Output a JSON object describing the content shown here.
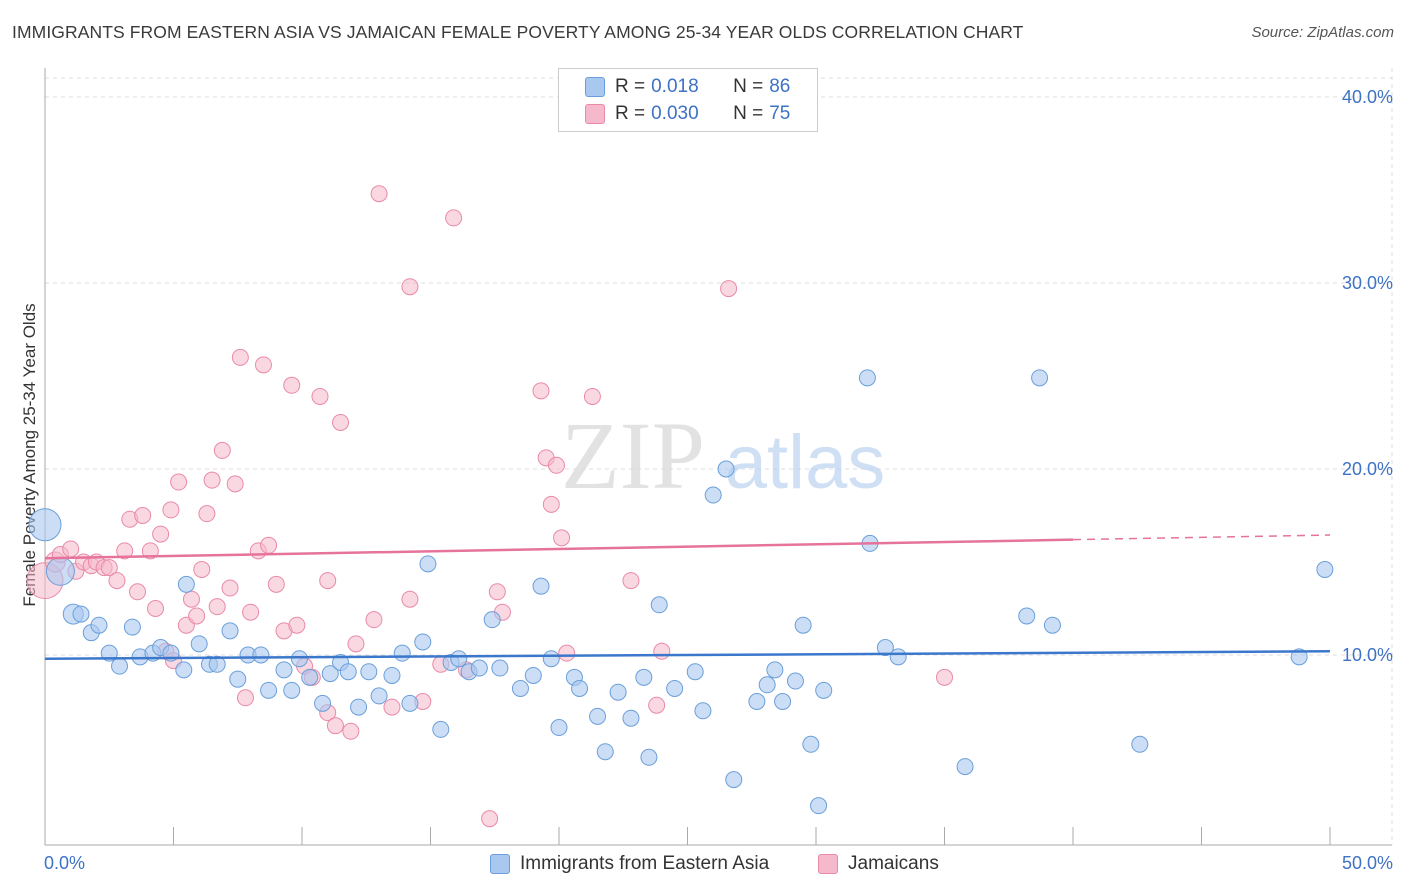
{
  "title": "IMMIGRANTS FROM EASTERN ASIA VS JAMAICAN FEMALE POVERTY AMONG 25-34 YEAR OLDS CORRELATION CHART",
  "source": "Source: ZipAtlas.com",
  "watermark": {
    "zip": "ZIP",
    "atlas": "atlas"
  },
  "colors": {
    "blue_fill": "#a9c8f0",
    "blue_stroke": "#6b9fd9",
    "blue_line": "#3b78cc",
    "pink_fill": "#f6b8cb",
    "pink_stroke": "#e98aa8",
    "pink_line": "#e5739a",
    "tick_label": "#3d72c5",
    "grid": "#dddddd"
  },
  "legend": {
    "rows": [
      {
        "r_label": "R =",
        "r_value": "0.018",
        "n_label": "N =",
        "n_value": "86"
      },
      {
        "r_label": "R =",
        "r_value": "0.030",
        "n_label": "N =",
        "n_value": "75"
      }
    ]
  },
  "bottom_legend": [
    "Immigrants from Eastern Asia",
    "Jamaicans"
  ],
  "chart_data": {
    "type": "scatter",
    "title": "IMMIGRANTS FROM EASTERN ASIA VS JAMAICAN FEMALE POVERTY AMONG 25-34 YEAR OLDS CORRELATION CHART",
    "xlabel": "",
    "ylabel": "Female Poverty Among 25-34 Year Olds",
    "xlim": [
      0,
      50
    ],
    "ylim": [
      0,
      40
    ],
    "x_tick_labels": [
      "0.0%",
      "50.0%"
    ],
    "y_tick_labels": [
      "10.0%",
      "20.0%",
      "30.0%",
      "40.0%"
    ],
    "y_ticks": [
      10,
      20,
      30,
      40
    ],
    "grid": true,
    "legend_position": "top-center",
    "series": [
      {
        "name": "Immigrants from Eastern Asia",
        "r": 0.018,
        "n": 86,
        "trend": {
          "x": [
            0,
            50
          ],
          "y": [
            9.8,
            10.2
          ]
        },
        "points": [
          [
            0.0,
            17.0,
            16
          ],
          [
            0.6,
            14.5,
            14
          ],
          [
            1.1,
            12.2,
            10
          ],
          [
            1.4,
            12.2,
            8
          ],
          [
            1.8,
            11.2,
            8
          ],
          [
            2.1,
            11.6,
            8
          ],
          [
            2.5,
            10.1,
            8
          ],
          [
            2.9,
            9.4,
            8
          ],
          [
            3.4,
            11.5,
            8
          ],
          [
            3.7,
            9.9,
            8
          ],
          [
            4.2,
            10.1,
            8
          ],
          [
            4.5,
            10.4,
            8
          ],
          [
            4.9,
            10.1,
            8
          ],
          [
            5.4,
            9.2,
            8
          ],
          [
            5.5,
            13.8,
            8
          ],
          [
            6.0,
            10.6,
            8
          ],
          [
            6.4,
            9.5,
            8
          ],
          [
            6.7,
            9.5,
            8
          ],
          [
            7.2,
            11.3,
            8
          ],
          [
            7.5,
            8.7,
            8
          ],
          [
            7.9,
            10.0,
            8
          ],
          [
            8.4,
            10.0,
            8
          ],
          [
            8.7,
            8.1,
            8
          ],
          [
            9.3,
            9.2,
            8
          ],
          [
            9.6,
            8.1,
            8
          ],
          [
            9.9,
            9.8,
            8
          ],
          [
            10.3,
            8.8,
            8
          ],
          [
            10.8,
            7.4,
            8
          ],
          [
            11.1,
            9.0,
            8
          ],
          [
            11.5,
            9.6,
            8
          ],
          [
            11.8,
            9.1,
            8
          ],
          [
            12.2,
            7.2,
            8
          ],
          [
            12.6,
            9.1,
            8
          ],
          [
            13.0,
            7.8,
            8
          ],
          [
            13.5,
            8.9,
            8
          ],
          [
            13.9,
            10.1,
            8
          ],
          [
            14.2,
            7.4,
            8
          ],
          [
            14.7,
            10.7,
            8
          ],
          [
            14.9,
            14.9,
            8
          ],
          [
            15.4,
            6.0,
            8
          ],
          [
            15.8,
            9.6,
            8
          ],
          [
            16.1,
            9.8,
            8
          ],
          [
            16.5,
            9.1,
            8
          ],
          [
            16.9,
            9.3,
            8
          ],
          [
            17.4,
            11.9,
            8
          ],
          [
            17.7,
            9.3,
            8
          ],
          [
            18.5,
            8.2,
            8
          ],
          [
            19.0,
            8.9,
            8
          ],
          [
            19.3,
            13.7,
            8
          ],
          [
            19.7,
            9.8,
            8
          ],
          [
            20.0,
            6.1,
            8
          ],
          [
            20.6,
            8.8,
            8
          ],
          [
            20.8,
            8.2,
            8
          ],
          [
            21.5,
            6.7,
            8
          ],
          [
            21.8,
            4.8,
            8
          ],
          [
            22.3,
            8.0,
            8
          ],
          [
            22.8,
            6.6,
            8
          ],
          [
            23.3,
            8.8,
            8
          ],
          [
            23.5,
            4.5,
            8
          ],
          [
            23.9,
            12.7,
            8
          ],
          [
            24.5,
            8.2,
            8
          ],
          [
            25.3,
            9.1,
            8
          ],
          [
            25.6,
            7.0,
            8
          ],
          [
            26.0,
            18.6,
            8
          ],
          [
            26.5,
            20.0,
            8
          ],
          [
            26.8,
            3.3,
            8
          ],
          [
            27.7,
            7.5,
            8
          ],
          [
            28.1,
            8.4,
            8
          ],
          [
            28.4,
            9.2,
            8
          ],
          [
            28.7,
            7.5,
            8
          ],
          [
            29.2,
            8.6,
            8
          ],
          [
            29.5,
            11.6,
            8
          ],
          [
            29.8,
            5.2,
            8
          ],
          [
            30.1,
            1.9,
            8
          ],
          [
            30.3,
            8.1,
            8
          ],
          [
            32.0,
            24.9,
            8
          ],
          [
            32.1,
            16.0,
            8
          ],
          [
            32.7,
            10.4,
            8
          ],
          [
            33.2,
            9.9,
            8
          ],
          [
            35.8,
            4.0,
            8
          ],
          [
            38.2,
            12.1,
            8
          ],
          [
            38.7,
            24.9,
            8
          ],
          [
            39.2,
            11.6,
            8
          ],
          [
            42.6,
            5.2,
            8
          ],
          [
            48.8,
            9.9,
            8
          ],
          [
            49.8,
            14.6,
            8
          ]
        ]
      },
      {
        "name": "Jamaicans",
        "r": 0.03,
        "n": 75,
        "trend": {
          "x": [
            0,
            40
          ],
          "y": [
            15.2,
            16.2
          ]
        },
        "trend_dashed": {
          "x": [
            40,
            50
          ],
          "y": [
            16.2,
            16.45
          ]
        },
        "points": [
          [
            0.0,
            14.0,
            18
          ],
          [
            0.4,
            15.0,
            10
          ],
          [
            0.6,
            15.4,
            8
          ],
          [
            1.0,
            15.7,
            8
          ],
          [
            1.2,
            14.5,
            8
          ],
          [
            1.5,
            15.0,
            8
          ],
          [
            1.8,
            14.8,
            8
          ],
          [
            2.0,
            15.0,
            8
          ],
          [
            2.3,
            14.7,
            8
          ],
          [
            2.5,
            14.7,
            8
          ],
          [
            2.8,
            14.0,
            8
          ],
          [
            3.1,
            15.6,
            8
          ],
          [
            3.3,
            17.3,
            8
          ],
          [
            3.6,
            13.4,
            8
          ],
          [
            3.8,
            17.5,
            8
          ],
          [
            4.1,
            15.6,
            8
          ],
          [
            4.3,
            12.5,
            8
          ],
          [
            4.5,
            16.5,
            8
          ],
          [
            4.7,
            10.2,
            8
          ],
          [
            4.9,
            17.8,
            8
          ],
          [
            5.0,
            9.7,
            8
          ],
          [
            5.2,
            19.3,
            8
          ],
          [
            5.5,
            11.6,
            8
          ],
          [
            5.7,
            13.0,
            8
          ],
          [
            5.9,
            12.1,
            8
          ],
          [
            6.1,
            14.6,
            8
          ],
          [
            6.3,
            17.6,
            8
          ],
          [
            6.5,
            19.4,
            8
          ],
          [
            6.7,
            12.6,
            8
          ],
          [
            6.9,
            21.0,
            8
          ],
          [
            7.2,
            13.6,
            8
          ],
          [
            7.4,
            19.2,
            8
          ],
          [
            7.6,
            26.0,
            8
          ],
          [
            7.8,
            7.7,
            8
          ],
          [
            8.0,
            12.3,
            8
          ],
          [
            8.3,
            15.6,
            8
          ],
          [
            8.5,
            25.6,
            8
          ],
          [
            8.7,
            15.9,
            8
          ],
          [
            9.0,
            13.8,
            8
          ],
          [
            9.3,
            11.3,
            8
          ],
          [
            9.6,
            24.5,
            8
          ],
          [
            9.8,
            11.6,
            8
          ],
          [
            10.1,
            9.4,
            8
          ],
          [
            10.4,
            8.8,
            8
          ],
          [
            10.7,
            23.9,
            8
          ],
          [
            11.0,
            14.0,
            8
          ],
          [
            11.0,
            6.9,
            8
          ],
          [
            11.3,
            6.2,
            8
          ],
          [
            11.5,
            22.5,
            8
          ],
          [
            11.9,
            5.9,
            8
          ],
          [
            12.1,
            10.6,
            8
          ],
          [
            12.8,
            11.9,
            8
          ],
          [
            13.0,
            34.8,
            8
          ],
          [
            13.5,
            7.2,
            8
          ],
          [
            14.2,
            29.8,
            8
          ],
          [
            14.2,
            13.0,
            8
          ],
          [
            14.7,
            7.5,
            8
          ],
          [
            15.4,
            9.5,
            8
          ],
          [
            15.9,
            33.5,
            8
          ],
          [
            16.4,
            9.2,
            8
          ],
          [
            17.3,
            1.2,
            8
          ],
          [
            17.6,
            13.4,
            8
          ],
          [
            17.8,
            12.3,
            8
          ],
          [
            19.3,
            24.2,
            8
          ],
          [
            19.5,
            20.6,
            8
          ],
          [
            19.7,
            18.1,
            8
          ],
          [
            19.9,
            20.2,
            8
          ],
          [
            20.1,
            16.3,
            8
          ],
          [
            20.3,
            10.1,
            8
          ],
          [
            21.3,
            23.9,
            8
          ],
          [
            22.8,
            14.0,
            8
          ],
          [
            23.8,
            7.3,
            8
          ],
          [
            24.0,
            10.2,
            8
          ],
          [
            26.6,
            29.7,
            8
          ],
          [
            35.0,
            8.8,
            8
          ]
        ]
      }
    ]
  }
}
